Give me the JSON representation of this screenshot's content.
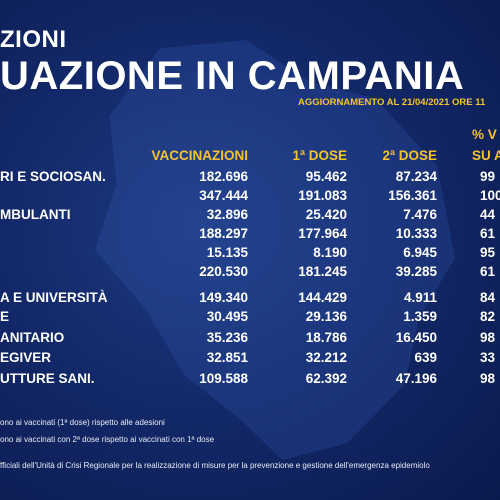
{
  "header": {
    "kicker": "ZIONI",
    "title": "UAZIONE IN CAMPANIA",
    "update": "AGGIORNAMENTO AL 21/04/2021 ORE 11"
  },
  "columns": {
    "vaccinazioni": "VACCINAZIONI",
    "dose1": "1ª DOSE",
    "dose2": "2ª DOSE",
    "pct_top": "% V",
    "pct_bottom": "SU A"
  },
  "rows": [
    {
      "label": "RI E SOCIOSAN.",
      "vacc": "182.696",
      "dose1": "95.462",
      "dose2": "87.234",
      "pct": "99"
    },
    {
      "label": "",
      "vacc": "347.444",
      "dose1": "191.083",
      "dose2": "156.361",
      "pct": "100"
    },
    {
      "label": "MBULANTI",
      "vacc": "32.896",
      "dose1": "25.420",
      "dose2": "7.476",
      "pct": "44"
    },
    {
      "label": "",
      "vacc": "188.297",
      "dose1": "177.964",
      "dose2": "10.333",
      "pct": "61"
    },
    {
      "label": "",
      "vacc": "15.135",
      "dose1": "8.190",
      "dose2": "6.945",
      "pct": "95"
    },
    {
      "label": "",
      "vacc": "220.530",
      "dose1": "181.245",
      "dose2": "39.285",
      "pct": "61"
    },
    {
      "label": "A E UNIVERSITÀ",
      "vacc": "149.340",
      "dose1": "144.429",
      "dose2": "4.911",
      "pct": "84"
    },
    {
      "label": "E",
      "vacc": "30.495",
      "dose1": "29.136",
      "dose2": "1.359",
      "pct": "82"
    },
    {
      "label": "ANITARIO",
      "vacc": "35.236",
      "dose1": "18.786",
      "dose2": "16.450",
      "pct": "98"
    },
    {
      "label": "EGIVER",
      "vacc": "32.851",
      "dose1": "32.212",
      "dose2": "639",
      "pct": "33"
    },
    {
      "label": "UTTURE SANI.",
      "vacc": "109.588",
      "dose1": "62.392",
      "dose2": "47.196",
      "pct": "98"
    }
  ],
  "notes": {
    "line1": "ono ai vaccinati (1ª dose) rispetto alle adesioni",
    "line2": "ono ai vaccinati con 2ª dose rispetto ai vaccinati con 1ª dose",
    "footer": "fficiali dell'Unità di Crisi Regionale per la realizzazione di misure per la prevenzione e gestione dell'emergenza epidemiolo"
  }
}
